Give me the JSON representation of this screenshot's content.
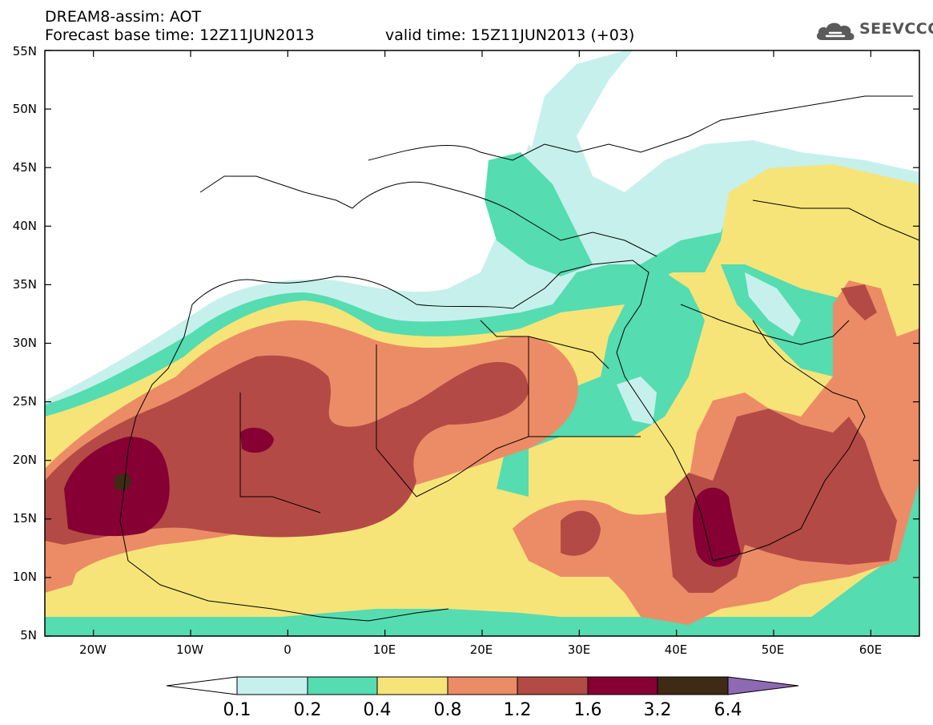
{
  "header": {
    "title": "DREAM8-assim: AOT",
    "forecast_base": "Forecast base time: 12Z11JUN2013",
    "valid_time": "valid time: 15Z11JUN2013 (+03)"
  },
  "logo": {
    "text": "SEEVCCC",
    "icon": "cloud-icon"
  },
  "map": {
    "lat_labels": [
      "55N",
      "50N",
      "45N",
      "40N",
      "35N",
      "30N",
      "25N",
      "20N",
      "15N",
      "10N",
      "5N"
    ],
    "lon_labels": [
      "20W",
      "10W",
      "0",
      "10E",
      "20E",
      "30E",
      "40E",
      "50E",
      "60E"
    ],
    "lon_range": [
      -25,
      65
    ],
    "lat_range": [
      5,
      55
    ],
    "variable": "AOT"
  },
  "colorbar": {
    "levels": [
      "0.1",
      "0.2",
      "0.4",
      "0.8",
      "1.2",
      "1.6",
      "3.2",
      "6.4"
    ],
    "colors": [
      "#ffffff",
      "#c6f0ec",
      "#55dcb0",
      "#f6e479",
      "#ec8c66",
      "#b44a45",
      "#860034",
      "#3e2a15",
      "#8e69b4"
    ]
  }
}
